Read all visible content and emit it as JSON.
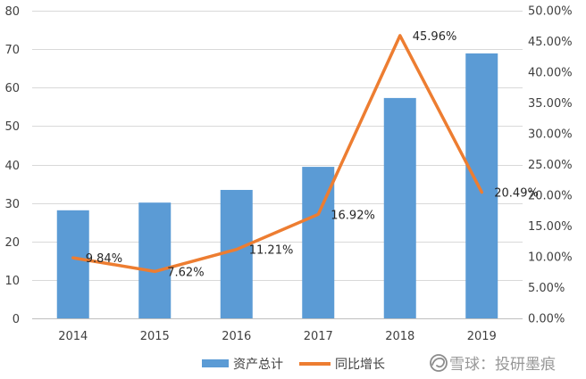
{
  "chart_data": {
    "type": "bar",
    "categories": [
      "2014",
      "2015",
      "2016",
      "2017",
      "2018",
      "2019"
    ],
    "series": [
      {
        "name": "资产总计",
        "type": "bar",
        "color": "#5B9BD5",
        "values": [
          28.1,
          30.1,
          33.4,
          39.4,
          57.3,
          68.9
        ]
      },
      {
        "name": "同比增长",
        "type": "line",
        "secondary_axis": true,
        "color": "#ED7D31",
        "values": [
          9.84,
          7.62,
          11.21,
          16.92,
          45.96,
          20.49
        ],
        "labels": [
          "9.84%",
          "7.62%",
          "11.21%",
          "16.92%",
          "45.96%",
          "20.49%"
        ]
      }
    ],
    "y_left": {
      "range": [
        0,
        80
      ],
      "step": 10,
      "ticks": [
        "0",
        "10",
        "20",
        "30",
        "40",
        "50",
        "60",
        "70",
        "80"
      ]
    },
    "y_right": {
      "range": [
        0,
        50
      ],
      "step": 5,
      "ticks": [
        "0.00%",
        "5.00%",
        "10.00%",
        "15.00%",
        "20.00%",
        "25.00%",
        "30.00%",
        "35.00%",
        "40.00%",
        "45.00%",
        "50.00%"
      ]
    },
    "grid": true,
    "grid_color": "#D9D9D9",
    "legend": "bottom"
  },
  "watermark": {
    "text": "雪球：投研墨痕",
    "icon": "xueqiu-logo-icon",
    "color": "#8c8c8c"
  }
}
